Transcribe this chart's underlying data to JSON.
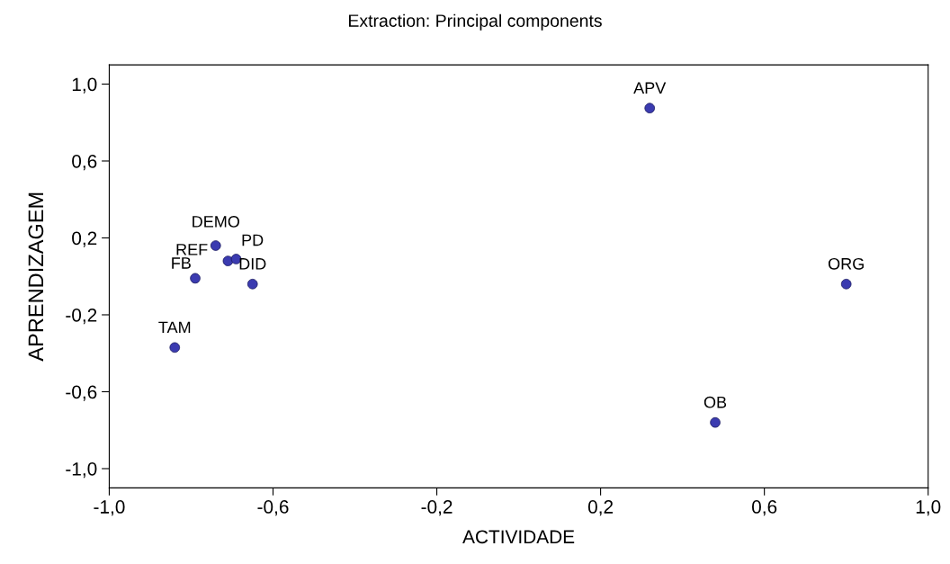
{
  "chart_data": {
    "type": "scatter",
    "title": "Extraction: Principal components",
    "xlabel": "ACTIVIDADE",
    "ylabel": "APRENDIZAGEM",
    "x": [
      0.32,
      0.8,
      0.48,
      -0.84,
      -0.79,
      -0.74,
      -0.71,
      -0.69,
      -0.65
    ],
    "values": [
      0.875,
      -0.04,
      -0.76,
      -0.37,
      -0.01,
      0.16,
      0.08,
      0.09,
      -0.04
    ],
    "color": "#3b3bb0",
    "marker": "circle",
    "grid": false,
    "legend": false,
    "xlim": [
      -1.0,
      1.0
    ],
    "ylim": [
      -1.1,
      1.1
    ],
    "xticks": [
      {
        "value": -1.0,
        "label": "-1,0"
      },
      {
        "value": -0.6,
        "label": "-0,6"
      },
      {
        "value": -0.2,
        "label": "-0,2"
      },
      {
        "value": 0.2,
        "label": "0,2"
      },
      {
        "value": 0.6,
        "label": "0,6"
      },
      {
        "value": 1.0,
        "label": "1,0"
      }
    ],
    "yticks": [
      {
        "value": -1.0,
        "label": "-1,0"
      },
      {
        "value": -0.6,
        "label": "-0,6"
      },
      {
        "value": -0.2,
        "label": "-0,2"
      },
      {
        "value": 0.2,
        "label": "0,2"
      },
      {
        "value": 0.6,
        "label": "0,6"
      },
      {
        "value": 1.0,
        "label": "1,0"
      }
    ],
    "annotations": [
      {
        "text": "APV",
        "x": 0.32,
        "y": 0.875
      },
      {
        "text": "ORG",
        "x": 0.8,
        "y": -0.04
      },
      {
        "text": "OB",
        "x": 0.48,
        "y": -0.76
      },
      {
        "text": "TAM",
        "x": -0.84,
        "y": -0.37
      },
      {
        "text": "FB",
        "x": -0.79,
        "y": -0.01
      },
      {
        "text": "DEMO",
        "x": -0.74,
        "y": 0.16
      },
      {
        "text": "REF",
        "x": -0.71,
        "y": 0.08
      },
      {
        "text": "PD",
        "x": -0.69,
        "y": 0.09
      },
      {
        "text": "DID",
        "x": -0.65,
        "y": -0.04
      }
    ]
  }
}
